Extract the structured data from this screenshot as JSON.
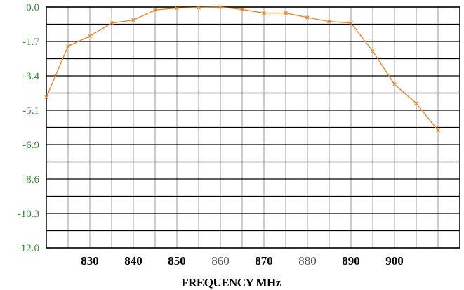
{
  "chart_data": {
    "type": "line",
    "title": "",
    "xlabel": "FREQUENCY MHz",
    "ylabel": "",
    "xlim": [
      820,
      915
    ],
    "ylim": [
      -12.0,
      0.0
    ],
    "y_ticks": [
      "0.0",
      "-1.7",
      "-3.4",
      "-5.1",
      "-6.9",
      "-8.6",
      "-10.3",
      "-12.0"
    ],
    "x_ticks": [
      {
        "value": 830,
        "label": "830",
        "style": "bold"
      },
      {
        "value": 840,
        "label": "840",
        "style": "bold"
      },
      {
        "value": 850,
        "label": "850",
        "style": "bold"
      },
      {
        "value": 860,
        "label": "860",
        "style": "light"
      },
      {
        "value": 870,
        "label": "870",
        "style": "bold"
      },
      {
        "value": 880,
        "label": "880",
        "style": "light"
      },
      {
        "value": 890,
        "label": "890",
        "style": "bold"
      },
      {
        "value": 900,
        "label": "900",
        "style": "bold"
      }
    ],
    "grid": true,
    "colors": {
      "line": "#e8821e",
      "ytick_text": "#3a8a3a",
      "horizontal_grid": "#000000",
      "vertical_grid": "#9a9a9a"
    },
    "series": [
      {
        "marker": "x",
        "x": [
          820,
          825,
          830,
          835,
          840,
          845,
          850,
          855,
          860,
          865,
          870,
          875,
          880,
          885,
          890,
          895,
          900,
          905,
          910
        ],
        "y": [
          -4.5,
          -1.95,
          -1.45,
          -0.8,
          -0.65,
          -0.15,
          -0.05,
          -0.02,
          0.0,
          -0.12,
          -0.3,
          -0.3,
          -0.52,
          -0.72,
          -0.8,
          -2.2,
          -3.85,
          -4.8,
          -6.15
        ]
      }
    ]
  }
}
